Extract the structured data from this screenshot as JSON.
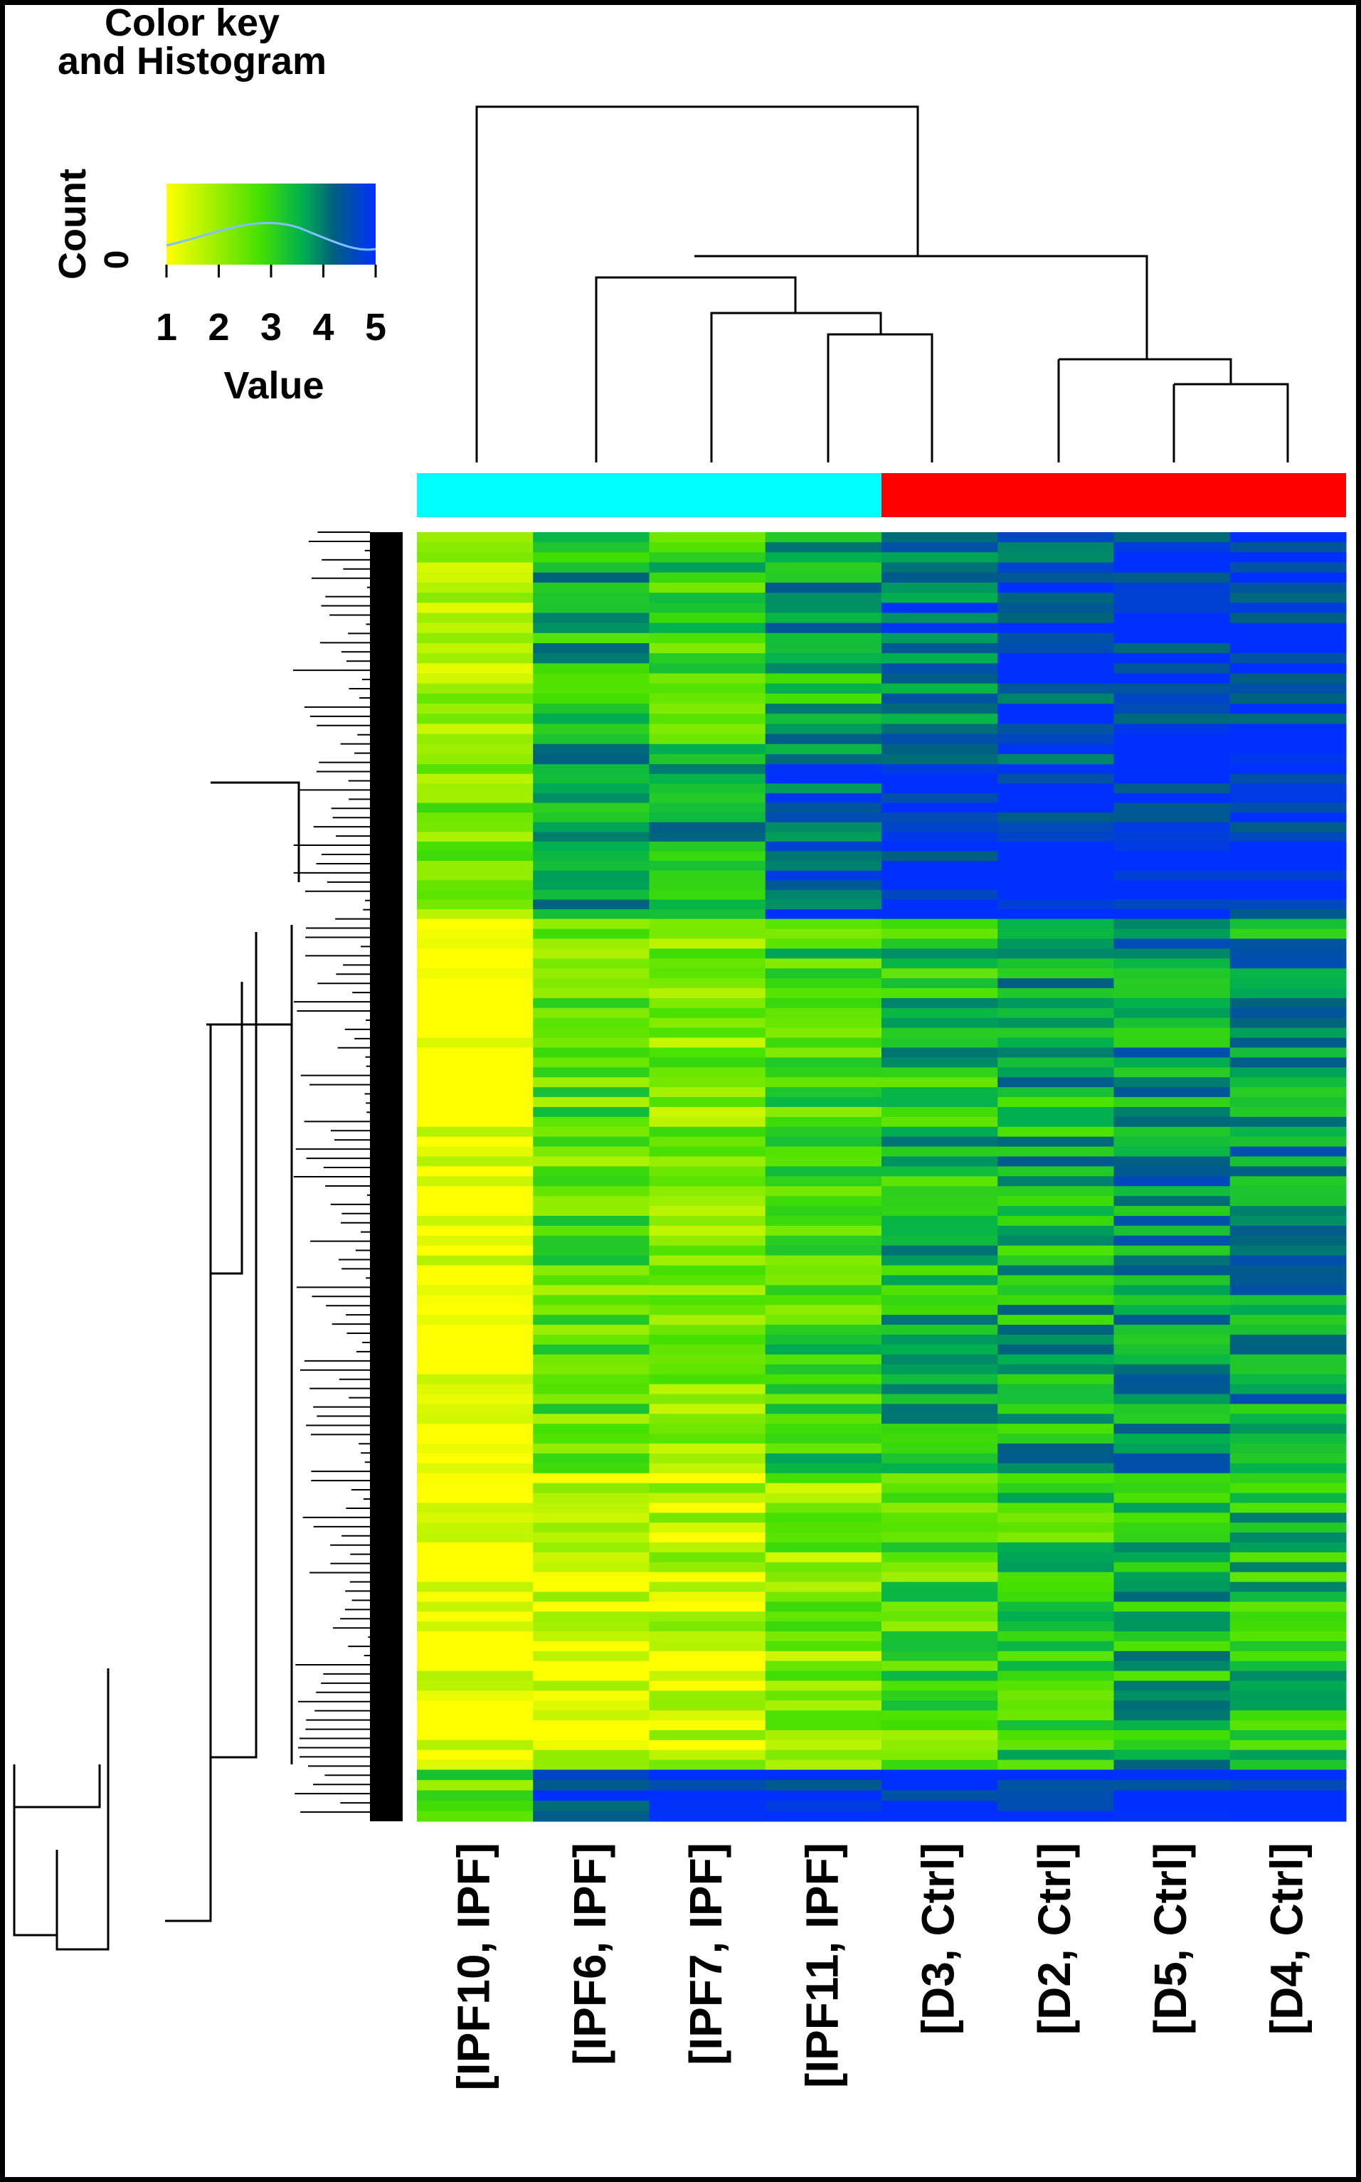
{
  "chart_data": {
    "type": "heatmap",
    "color_key": {
      "title": "Color key\nand Histogram",
      "ylabel": "Count",
      "y_tick": "0",
      "xlabel": "Value",
      "ticks": [
        "1",
        "2",
        "3",
        "4",
        "5"
      ],
      "range": [
        1,
        5
      ],
      "colors": [
        "#ffff00",
        "#00e600",
        "#0000ff"
      ]
    },
    "columns": [
      "[IPF10, IPF]",
      "[IPF6, IPF]",
      "[IPF7, IPF]",
      "[IPF11, IPF]",
      "[D3, Ctrl]",
      "[D2, Ctrl]",
      "[D5, Ctrl]",
      "[D4, Ctrl]"
    ],
    "groups": [
      {
        "columns": [
          "[IPF10, IPF]",
          "[IPF6, IPF]",
          "[IPF7, IPF]",
          "[IPF11, IPF]"
        ],
        "color": "#00ffff"
      },
      {
        "columns": [
          "[D3, Ctrl]",
          "[D2, Ctrl]",
          "[D5, Ctrl]",
          "[D4, Ctrl]"
        ],
        "color": "#ff0000"
      }
    ],
    "column_dendrogram_order": [
      0,
      1,
      2,
      3,
      4,
      5,
      6,
      7
    ],
    "row_blocks": [
      {
        "rows": "top block",
        "values": [
          2.0,
          3.4,
          3.0,
          3.6,
          4.2,
          4.6,
          4.8,
          4.8
        ]
      },
      {
        "rows": "upper blue block",
        "values": [
          2.4,
          3.6,
          3.6,
          4.5,
          4.8,
          5.0,
          5.0,
          5.0
        ]
      },
      {
        "rows": "large middle block",
        "values": [
          1.0,
          2.6,
          2.3,
          2.9,
          3.3,
          3.5,
          3.8,
          3.8
        ]
      },
      {
        "rows": "lower block",
        "values": [
          1.0,
          1.5,
          1.6,
          2.2,
          2.7,
          3.0,
          3.4,
          3.3
        ]
      },
      {
        "rows": "bottom block",
        "values": [
          2.6,
          4.9,
          5.0,
          5.0,
          5.0,
          5.0,
          5.0,
          5.0
        ]
      }
    ]
  }
}
